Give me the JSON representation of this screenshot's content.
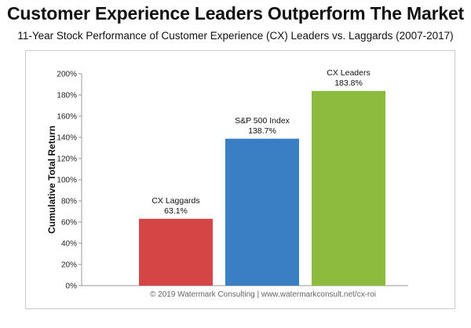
{
  "title": "Customer Experience Leaders Outperform The Market",
  "subtitle": "11-Year Stock Performance of Customer Experience (CX) Leaders vs. Laggards (2007-2017)",
  "footer": "© 2019 Watermark Consulting | www.watermarkconsult.net/cx-roi",
  "chart_data": {
    "type": "bar",
    "categories": [
      "CX Laggards",
      "S&P 500 Index",
      "CX Leaders"
    ],
    "values": [
      63.1,
      138.7,
      183.8
    ],
    "value_labels": [
      "63.1%",
      "138.7%",
      "183.8%"
    ],
    "colors": [
      "#d64545",
      "#3a7fc4",
      "#8dbb3e"
    ],
    "ylabel": "Cumulative Total Return",
    "ylim": [
      0,
      200
    ],
    "yticks": [
      0,
      20,
      40,
      60,
      80,
      100,
      120,
      140,
      160,
      180,
      200
    ],
    "ytick_labels": [
      "0%",
      "20%",
      "40%",
      "60%",
      "80%",
      "100%",
      "120%",
      "140%",
      "160%",
      "180%",
      "200%"
    ],
    "grid": false,
    "legend": "none"
  }
}
